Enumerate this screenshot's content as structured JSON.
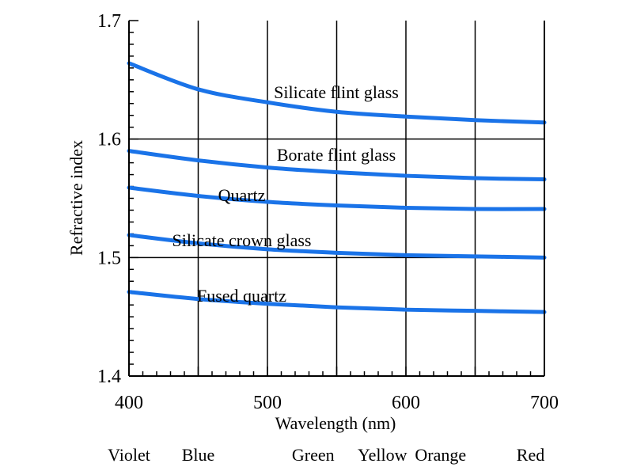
{
  "chart_data": {
    "type": "line",
    "title": "",
    "xlabel": "Wavelength (nm)",
    "ylabel": "Refractive index",
    "xlim": [
      400,
      700
    ],
    "ylim": [
      1.4,
      1.7
    ],
    "x_ticks": [
      "400",
      "500",
      "600",
      "700"
    ],
    "y_ticks": [
      "1.4",
      "1.5",
      "1.6",
      "1.7"
    ],
    "grid": "vertical lines every 50 nm; horizontal lines at 1.5 and 1.6",
    "line_color": "#1a73e8",
    "color_labels": [
      {
        "label": "Violet",
        "wavelength": 400
      },
      {
        "label": "Blue",
        "wavelength": 450
      },
      {
        "label": "Green",
        "wavelength": 533
      },
      {
        "label": "Yellow",
        "wavelength": 583
      },
      {
        "label": "Orange",
        "wavelength": 625
      },
      {
        "label": "Red",
        "wavelength": 690
      }
    ],
    "series": [
      {
        "name": "Silicate flint glass",
        "label_at": [
          500,
          1.64
        ],
        "x": [
          400,
          450,
          500,
          550,
          600,
          650,
          700
        ],
        "values": [
          1.664,
          1.642,
          1.631,
          1.623,
          1.619,
          1.616,
          1.614
        ]
      },
      {
        "name": "Borate flint glass",
        "label_at": [
          500,
          1.587
        ],
        "x": [
          400,
          450,
          500,
          550,
          600,
          650,
          700
        ],
        "values": [
          1.59,
          1.582,
          1.576,
          1.572,
          1.569,
          1.567,
          1.566
        ]
      },
      {
        "name": "Quartz",
        "label_at": [
          550,
          1.553
        ],
        "x": [
          400,
          450,
          500,
          550,
          600,
          650,
          700
        ],
        "values": [
          1.559,
          1.552,
          1.547,
          1.544,
          1.542,
          1.541,
          1.541
        ]
      },
      {
        "name": "Silicate crown glass",
        "label_at": [
          550,
          1.515
        ],
        "x": [
          400,
          450,
          500,
          550,
          600,
          650,
          700
        ],
        "values": [
          1.519,
          1.512,
          1.507,
          1.504,
          1.502,
          1.501,
          1.5
        ]
      },
      {
        "name": "Fused quartz",
        "label_at": [
          550,
          1.468
        ],
        "x": [
          400,
          450,
          500,
          550,
          600,
          650,
          700
        ],
        "values": [
          1.471,
          1.465,
          1.461,
          1.458,
          1.456,
          1.455,
          1.454
        ]
      }
    ]
  }
}
